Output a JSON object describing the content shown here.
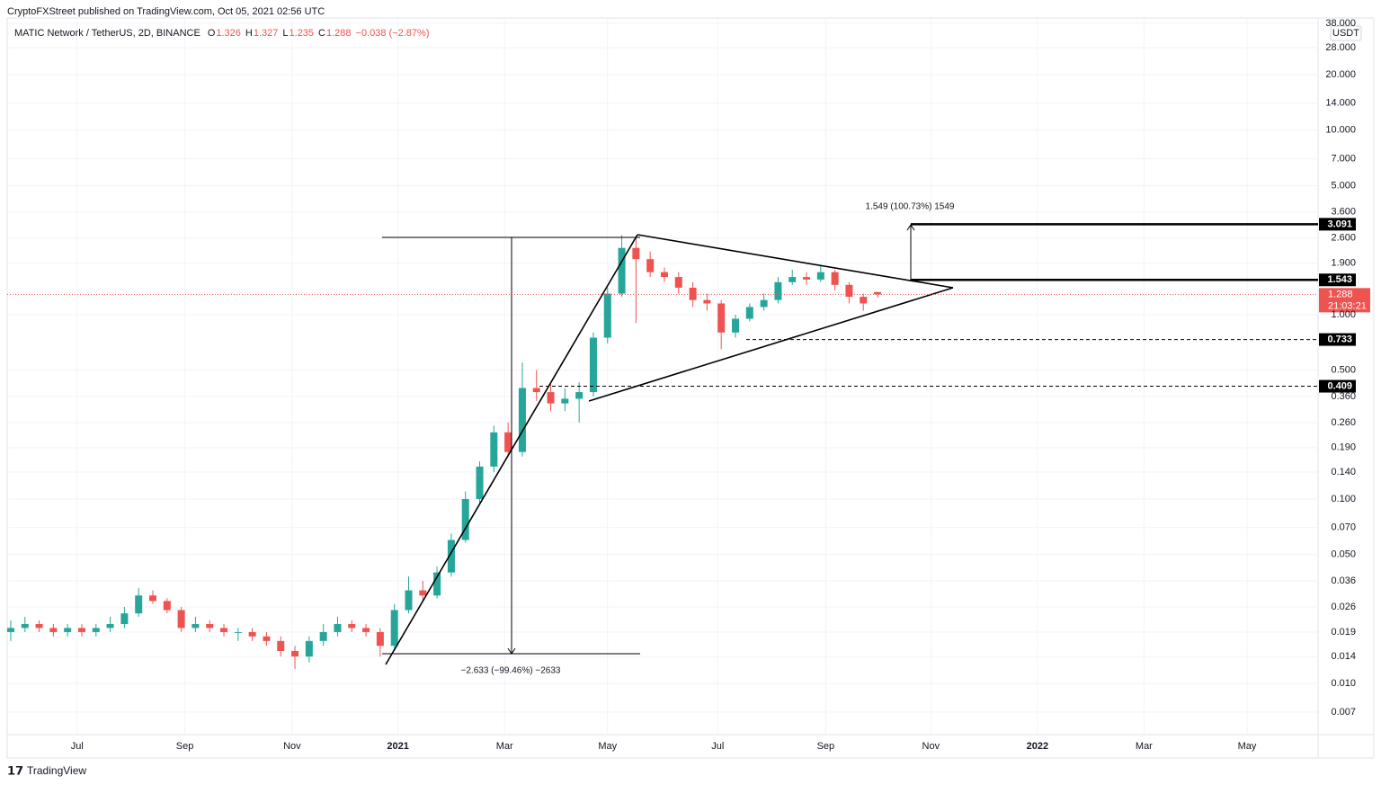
{
  "header": {
    "published": "CryptoFXStreet published on TradingView.com, Oct 05, 2021 02:56 UTC",
    "footer": "TradingView"
  },
  "chart_data": {
    "type": "candlestick",
    "title": "MATIC Network / TetherUS, 2D, BINANCE",
    "ohlc_legend": [
      {
        "label": "O",
        "value": 1.326
      },
      {
        "label": "H",
        "value": 1.327
      },
      {
        "label": "L",
        "value": 1.235
      },
      {
        "label": "C",
        "value": 1.288
      }
    ],
    "change": "−0.038 (−2.87%)",
    "currency": "USDT",
    "x": [
      0,
      4,
      8,
      12,
      16,
      20,
      24,
      28,
      32,
      36,
      40,
      44,
      48,
      52,
      56,
      60,
      64,
      68,
      72,
      76,
      80,
      84,
      88,
      92,
      96,
      100,
      104,
      108,
      112,
      116,
      120,
      124,
      128,
      132,
      136,
      140,
      144,
      148,
      152,
      156,
      160,
      164,
      168,
      172,
      176,
      180,
      184,
      188,
      192,
      196,
      200,
      204,
      208,
      212,
      216,
      220,
      224,
      228,
      232,
      236,
      240,
      244
    ],
    "open": [
      0.019,
      0.02,
      0.021,
      0.02,
      0.019,
      0.02,
      0.019,
      0.02,
      0.021,
      0.024,
      0.03,
      0.028,
      0.025,
      0.02,
      0.021,
      0.02,
      0.019,
      0.019,
      0.018,
      0.017,
      0.015,
      0.014,
      0.017,
      0.019,
      0.021,
      0.02,
      0.019,
      0.016,
      0.025,
      0.032,
      0.03,
      0.04,
      0.06,
      0.1,
      0.15,
      0.23,
      0.18,
      0.4,
      0.38,
      0.33,
      0.35,
      0.38,
      0.75,
      1.3,
      2.3,
      2.0,
      1.7,
      1.6,
      1.4,
      1.2,
      1.15,
      0.8,
      0.95,
      1.1,
      1.2,
      1.5,
      1.6,
      1.55,
      1.7,
      1.45,
      1.25,
      1.326
    ],
    "high": [
      0.022,
      0.023,
      0.022,
      0.021,
      0.021,
      0.021,
      0.021,
      0.023,
      0.026,
      0.033,
      0.032,
      0.029,
      0.026,
      0.023,
      0.022,
      0.021,
      0.02,
      0.02,
      0.019,
      0.018,
      0.016,
      0.018,
      0.021,
      0.023,
      0.022,
      0.021,
      0.02,
      0.027,
      0.038,
      0.036,
      0.043,
      0.065,
      0.11,
      0.16,
      0.25,
      0.26,
      0.55,
      0.5,
      0.42,
      0.4,
      0.43,
      0.8,
      1.4,
      2.7,
      2.6,
      2.2,
      1.8,
      1.7,
      1.5,
      1.3,
      1.2,
      1.0,
      1.15,
      1.3,
      1.6,
      1.75,
      1.7,
      1.85,
      1.75,
      1.5,
      1.3,
      1.327
    ],
    "low": [
      0.017,
      0.019,
      0.019,
      0.018,
      0.018,
      0.018,
      0.018,
      0.019,
      0.02,
      0.023,
      0.027,
      0.024,
      0.019,
      0.019,
      0.019,
      0.018,
      0.017,
      0.017,
      0.016,
      0.014,
      0.012,
      0.013,
      0.016,
      0.018,
      0.019,
      0.018,
      0.014,
      0.015,
      0.024,
      0.028,
      0.029,
      0.038,
      0.058,
      0.095,
      0.14,
      0.17,
      0.17,
      0.34,
      0.3,
      0.3,
      0.26,
      0.36,
      0.7,
      1.25,
      0.9,
      1.6,
      1.5,
      1.3,
      1.1,
      1.05,
      0.65,
      0.75,
      0.92,
      1.05,
      1.15,
      1.45,
      1.45,
      1.5,
      1.35,
      1.15,
      1.05,
      1.235
    ],
    "close": [
      0.02,
      0.021,
      0.02,
      0.019,
      0.02,
      0.019,
      0.02,
      0.021,
      0.024,
      0.03,
      0.028,
      0.025,
      0.02,
      0.021,
      0.02,
      0.019,
      0.019,
      0.018,
      0.017,
      0.015,
      0.014,
      0.017,
      0.019,
      0.021,
      0.02,
      0.019,
      0.016,
      0.025,
      0.032,
      0.03,
      0.04,
      0.06,
      0.1,
      0.15,
      0.23,
      0.18,
      0.4,
      0.38,
      0.33,
      0.35,
      0.38,
      0.75,
      1.3,
      2.3,
      2.0,
      1.7,
      1.6,
      1.4,
      1.2,
      1.15,
      0.8,
      0.95,
      1.1,
      1.2,
      1.5,
      1.6,
      1.55,
      1.7,
      1.45,
      1.25,
      1.15,
      1.288
    ],
    "up_color": "#26a69a",
    "down_color": "#ef5350",
    "log_scale": true,
    "grid": true,
    "xlim": [
      -1,
      368
    ],
    "xticks": [
      {
        "value": 18.7,
        "label": "Jul"
      },
      {
        "value": 49,
        "label": "Sep"
      },
      {
        "value": 79.2,
        "label": "Nov"
      },
      {
        "value": 109,
        "label": "2021"
      },
      {
        "value": 139,
        "label": "Mar"
      },
      {
        "value": 168,
        "label": "May"
      },
      {
        "value": 199,
        "label": "Jul"
      },
      {
        "value": 229.4,
        "label": "Sep"
      },
      {
        "value": 259,
        "label": "Nov"
      },
      {
        "value": 289,
        "label": "2022"
      },
      {
        "value": 319,
        "label": "Mar"
      },
      {
        "value": 348,
        "label": "May"
      }
    ],
    "ylim": [
      0.00528,
      40.6
    ],
    "yticks": [
      {
        "value": 38,
        "label": "38.000"
      },
      {
        "value": 28,
        "label": "28.000"
      },
      {
        "value": 20,
        "label": "20.000"
      },
      {
        "value": 14,
        "label": "14.000"
      },
      {
        "value": 10,
        "label": "10.000"
      },
      {
        "value": 7,
        "label": "7.000"
      },
      {
        "value": 5,
        "label": "5.000"
      },
      {
        "value": 3.6,
        "label": "3.600"
      },
      {
        "value": 2.6,
        "label": "2.600"
      },
      {
        "value": 1.9,
        "label": "1.900"
      },
      {
        "value": 1,
        "label": "1.000"
      },
      {
        "value": 0.5,
        "label": "0.500"
      },
      {
        "value": 0.36,
        "label": "0.360"
      },
      {
        "value": 0.26,
        "label": "0.260"
      },
      {
        "value": 0.19,
        "label": "0.190"
      },
      {
        "value": 0.14,
        "label": "0.140"
      },
      {
        "value": 0.1,
        "label": "0.100"
      },
      {
        "value": 0.07,
        "label": "0.070"
      },
      {
        "value": 0.05,
        "label": "0.050"
      },
      {
        "value": 0.036,
        "label": "0.036"
      },
      {
        "value": 0.026,
        "label": "0.026"
      },
      {
        "value": 0.019,
        "label": "0.019"
      },
      {
        "value": 0.014,
        "label": "0.014"
      },
      {
        "value": 0.01,
        "label": "0.010"
      },
      {
        "value": 0.007,
        "label": "0.007"
      }
    ],
    "levels": [
      {
        "value": 3.091,
        "style": "solid"
      },
      {
        "value": 1.543,
        "style": "solid"
      },
      {
        "value": 0.733,
        "style": "dashed"
      },
      {
        "value": 0.409,
        "style": "dashed"
      }
    ],
    "last_price": {
      "value": 1.288,
      "countdown": "21:03:21",
      "color": "#ef5350"
    },
    "annotations": [
      "1.549 (100.73%) 1549",
      "−2.633 (−99.46%) −2633"
    ]
  }
}
